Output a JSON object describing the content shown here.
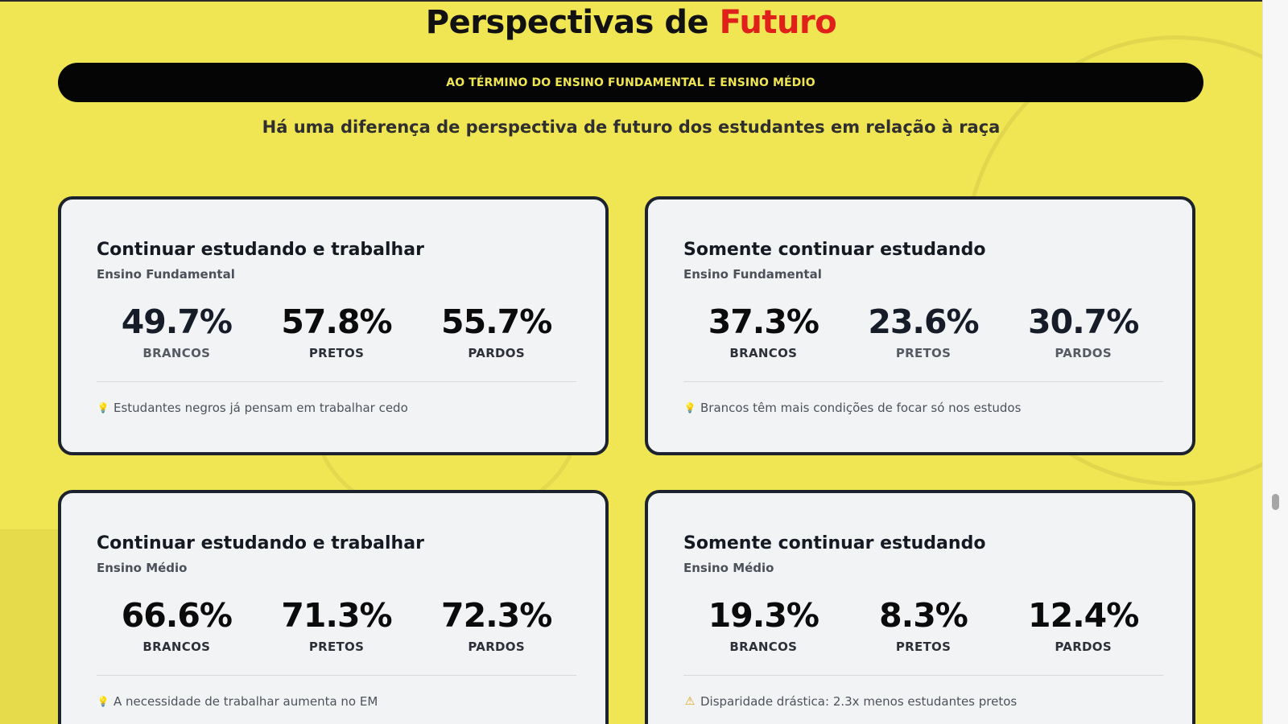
{
  "header": {
    "title_part1": "Perspectivas de ",
    "title_accent": "Futuro",
    "banner": "AO TÉRMINO DO ENSINO FUNDAMENTAL E ENSINO MÉDIO",
    "subtitle": "Há uma diferença de perspectiva de futuro dos estudantes em relação à raça"
  },
  "colors": {
    "background": "#f0e553",
    "accent_red": "#e0201b",
    "banner_bg": "#050505",
    "card_bg": "#f2f3f5",
    "card_border": "#1d232e"
  },
  "cards": [
    {
      "title": "Continuar estudando e trabalhar",
      "subtitle": "Ensino Fundamental",
      "stats": [
        {
          "value": "49.7%",
          "label": "BRANCOS"
        },
        {
          "value": "57.8%",
          "label": "PRETOS"
        },
        {
          "value": "55.7%",
          "label": "PARDOS"
        }
      ],
      "note_icon": "lightbulb-icon",
      "note": "Estudantes negros já pensam em trabalhar cedo"
    },
    {
      "title": "Somente continuar estudando",
      "subtitle": "Ensino Fundamental",
      "stats": [
        {
          "value": "37.3%",
          "label": "BRANCOS"
        },
        {
          "value": "23.6%",
          "label": "PRETOS"
        },
        {
          "value": "30.7%",
          "label": "PARDOS"
        }
      ],
      "note_icon": "lightbulb-icon",
      "note": "Brancos têm mais condições de focar só nos estudos"
    },
    {
      "title": "Continuar estudando e trabalhar",
      "subtitle": "Ensino Médio",
      "stats": [
        {
          "value": "66.6%",
          "label": "BRANCOS"
        },
        {
          "value": "71.3%",
          "label": "PRETOS"
        },
        {
          "value": "72.3%",
          "label": "PARDOS"
        }
      ],
      "note_icon": "lightbulb-icon",
      "note": "A necessidade de trabalhar aumenta no EM"
    },
    {
      "title": "Somente continuar estudando",
      "subtitle": "Ensino Médio",
      "stats": [
        {
          "value": "19.3%",
          "label": "BRANCOS"
        },
        {
          "value": "8.3%",
          "label": "PRETOS"
        },
        {
          "value": "12.4%",
          "label": "PARDOS"
        }
      ],
      "note_icon": "warning-icon",
      "note": "Disparidade drástica: 2.3x menos estudantes pretos"
    }
  ]
}
